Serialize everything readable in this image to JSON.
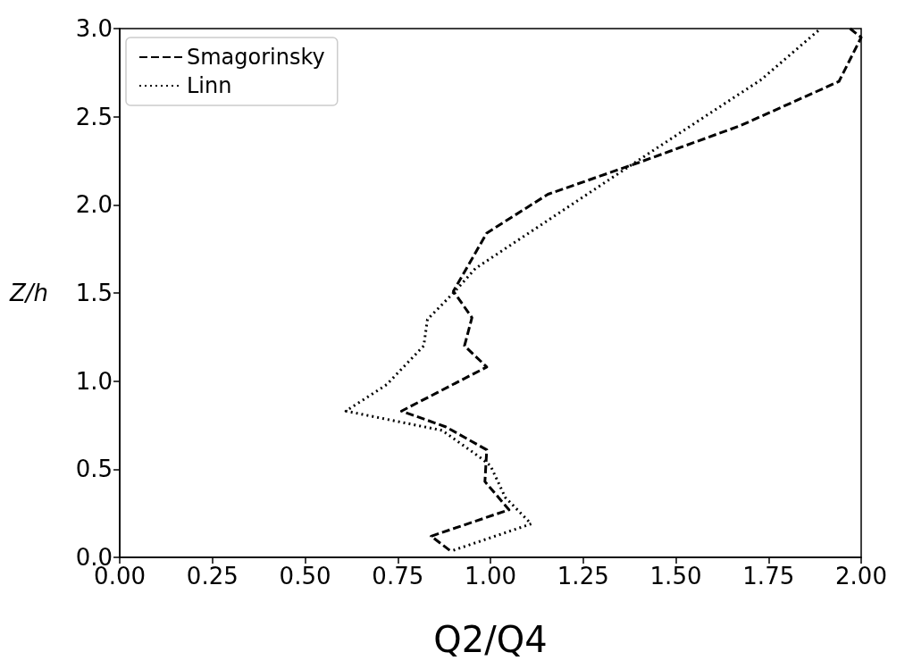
{
  "chart_data": {
    "type": "line",
    "xlabel": "Q2/Q4",
    "ylabel": "Z/h",
    "xlim": [
      0,
      2
    ],
    "ylim": [
      0,
      3
    ],
    "xticks": [
      {
        "value": 0,
        "label": "0.00"
      },
      {
        "value": 0.25,
        "label": "0.25"
      },
      {
        "value": 0.5,
        "label": "0.50"
      },
      {
        "value": 0.75,
        "label": "0.75"
      },
      {
        "value": 1,
        "label": "1.00"
      },
      {
        "value": 1.25,
        "label": "1.25"
      },
      {
        "value": 1.5,
        "label": "1.50"
      },
      {
        "value": 1.75,
        "label": "1.75"
      },
      {
        "value": 2,
        "label": "2.00"
      }
    ],
    "yticks": [
      {
        "value": 0,
        "label": "0.0"
      },
      {
        "value": 0.5,
        "label": "0.5"
      },
      {
        "value": 1,
        "label": "1.0"
      },
      {
        "value": 1.5,
        "label": "1.5"
      },
      {
        "value": 2,
        "label": "2.0"
      },
      {
        "value": 2.5,
        "label": "2.5"
      },
      {
        "value": 3,
        "label": "3.0"
      }
    ],
    "grid": false,
    "legend": "top left",
    "marker": "none",
    "series": [
      {
        "name": "Smagorinsky",
        "color": "#000000",
        "line_style": "dashed",
        "x": [
          0.89,
          0.84,
          1.05,
          0.985,
          0.99,
          0.88,
          0.76,
          0.99,
          0.93,
          0.95,
          0.9,
          0.99,
          1.155,
          1.4,
          1.675,
          1.94,
          2.0,
          1.97
        ],
        "values": [
          0.04,
          0.12,
          0.27,
          0.43,
          0.61,
          0.74,
          0.83,
          1.08,
          1.2,
          1.36,
          1.51,
          1.84,
          2.06,
          2.24,
          2.45,
          2.7,
          2.95,
          3.0
        ]
      },
      {
        "name": "Linn",
        "color": "#000000",
        "line_style": "dotted",
        "x": [
          0.9,
          1.11,
          1.04,
          1.0,
          0.97,
          0.87,
          0.61,
          0.72,
          0.82,
          0.83,
          0.9,
          0.96,
          1.44,
          1.73,
          1.885
        ],
        "values": [
          0.04,
          0.19,
          0.34,
          0.52,
          0.57,
          0.72,
          0.83,
          0.98,
          1.2,
          1.35,
          1.5,
          1.64,
          2.31,
          2.71,
          2.99
        ]
      }
    ]
  }
}
